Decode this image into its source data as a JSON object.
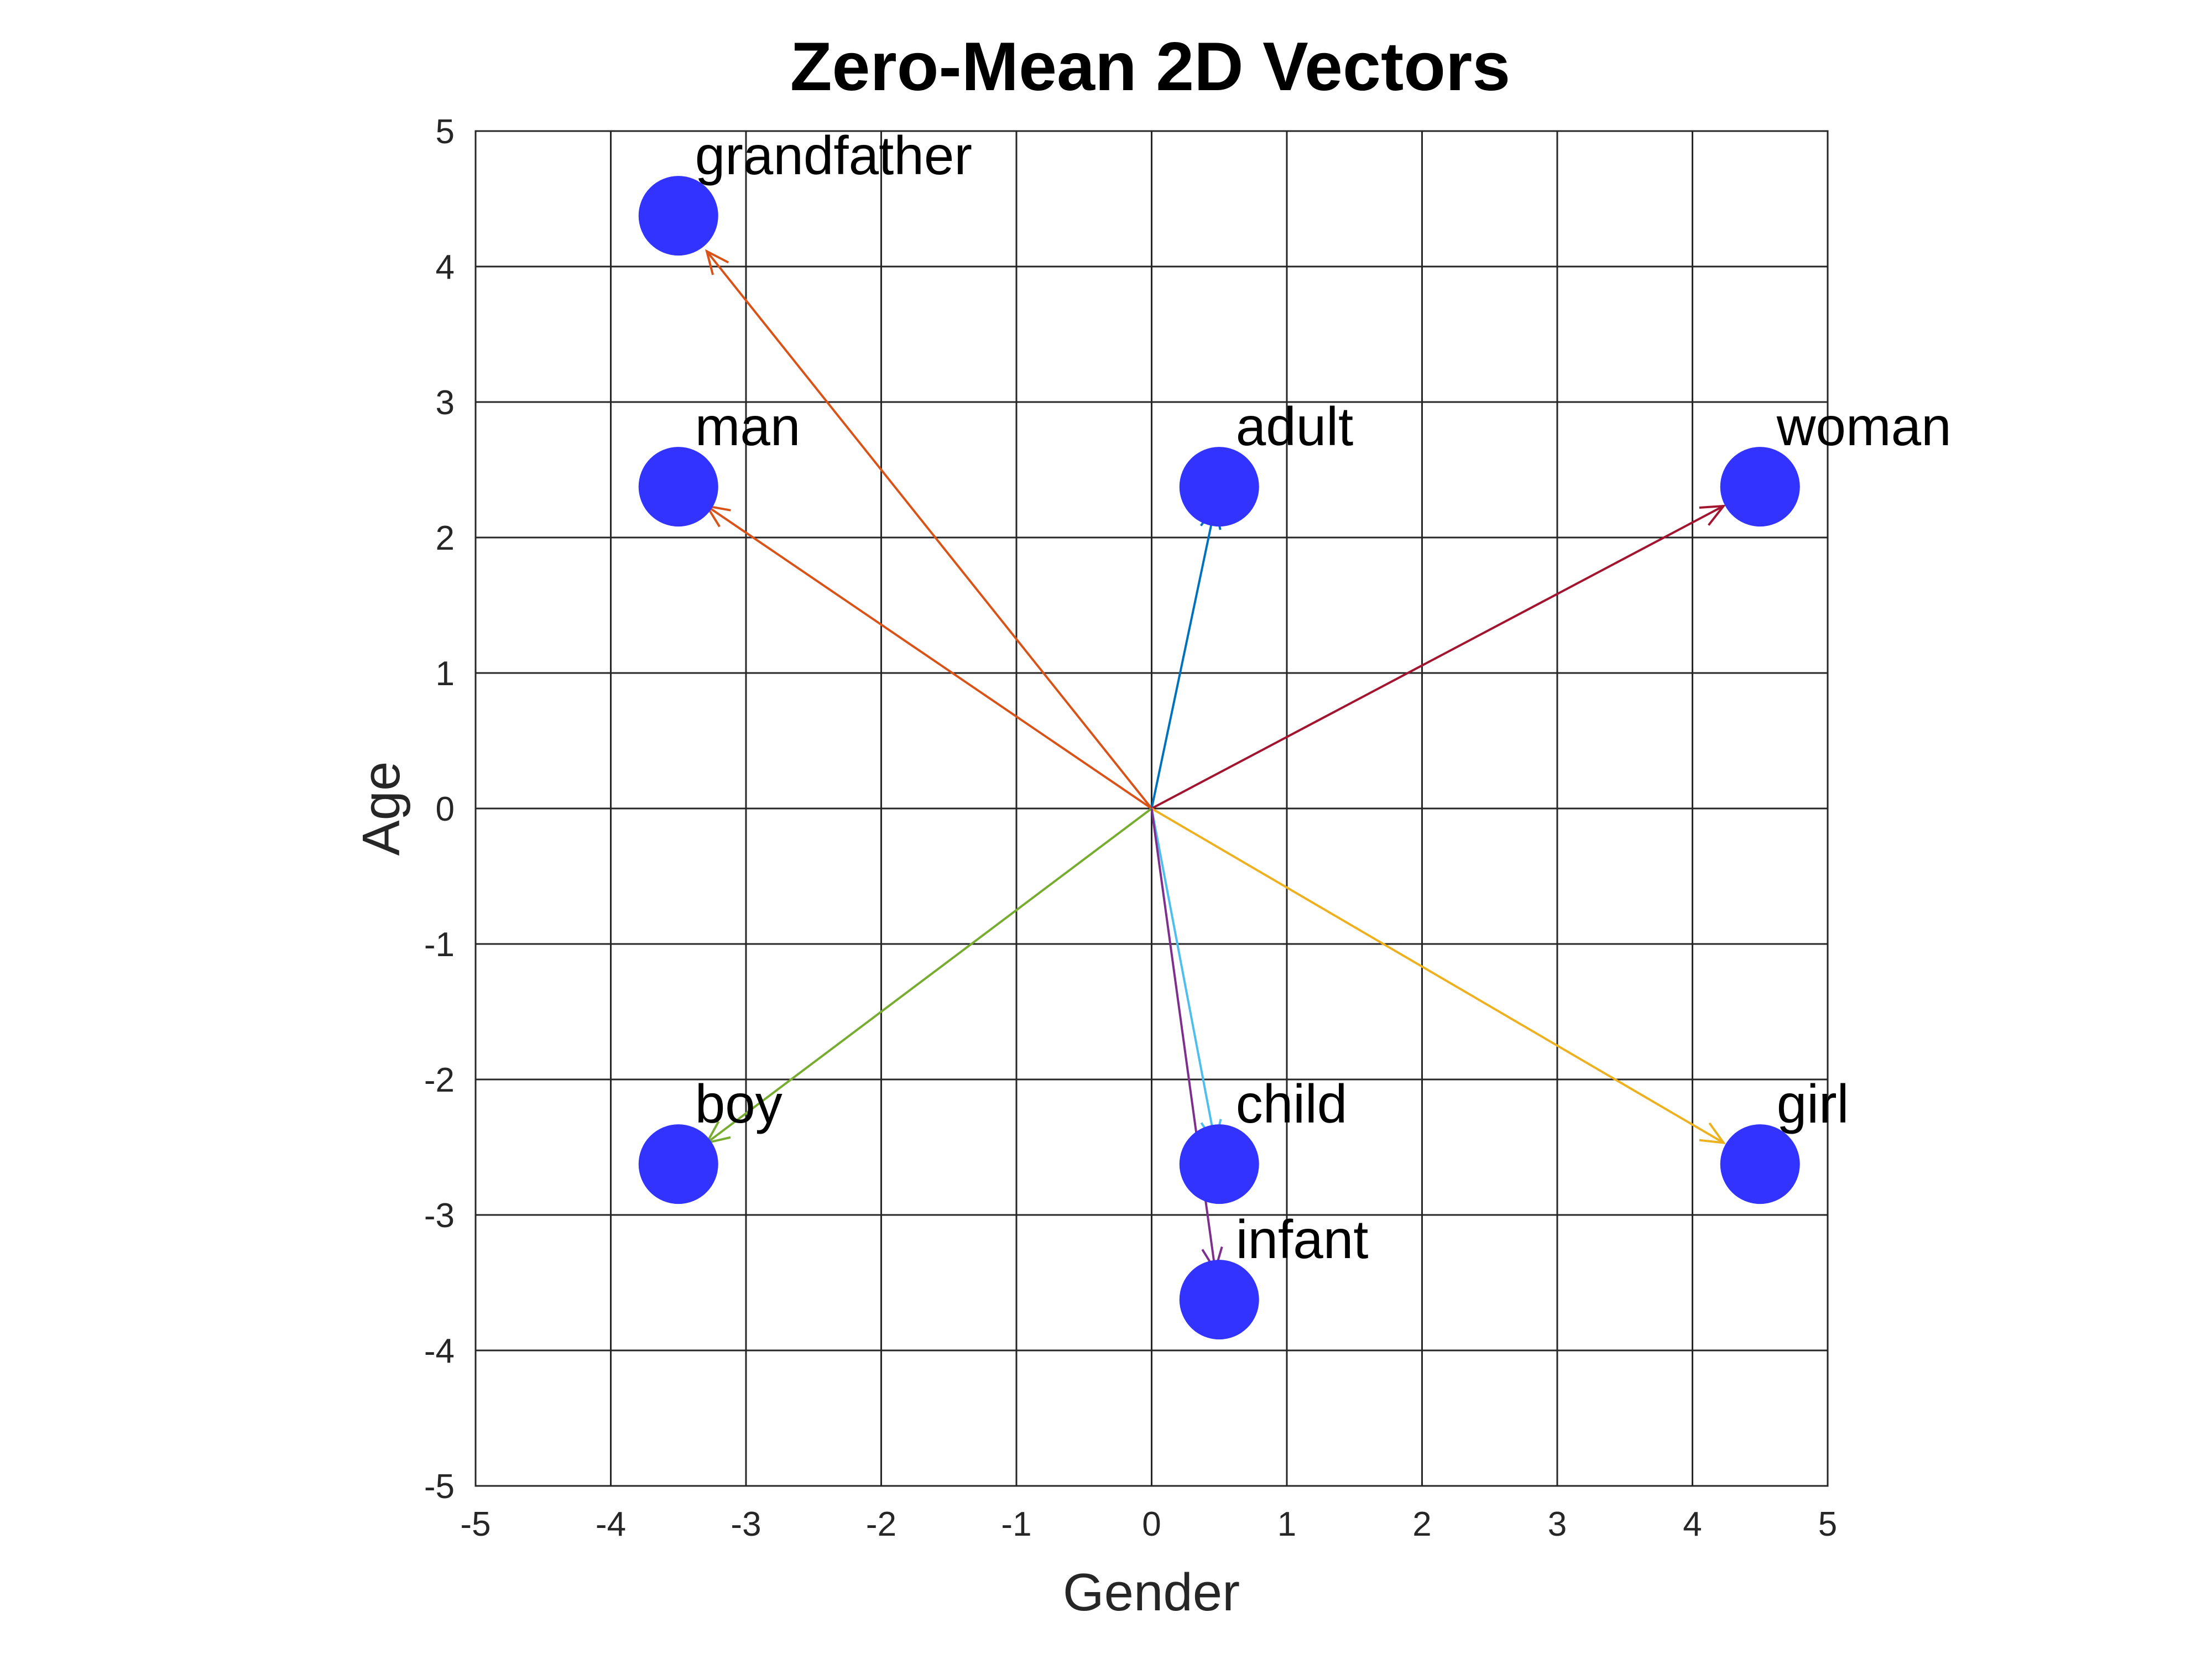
{
  "chart_data": {
    "type": "scatter",
    "title": "Zero-Mean 2D Vectors",
    "xlabel": "Gender",
    "ylabel": "Age",
    "xlim": [
      -5,
      5
    ],
    "ylim": [
      -5,
      5
    ],
    "xticks": [
      "-5",
      "-4",
      "-3",
      "-2",
      "-1",
      "0",
      "1",
      "2",
      "3",
      "4",
      "5"
    ],
    "yticks": [
      "-5",
      "-4",
      "-3",
      "-2",
      "-1",
      "0",
      "1",
      "2",
      "3",
      "4",
      "5"
    ],
    "grid": true,
    "marker_color": "#3333ff",
    "points": [
      {
        "label": "grandfather",
        "x": -3.5,
        "y": 4.375,
        "arrow_color": "#d95319"
      },
      {
        "label": "man",
        "x": -3.5,
        "y": 2.375,
        "arrow_color": "#d95319"
      },
      {
        "label": "adult",
        "x": 0.5,
        "y": 2.375,
        "arrow_color": "#0072bd"
      },
      {
        "label": "woman",
        "x": 4.5,
        "y": 2.375,
        "arrow_color": "#a2142f"
      },
      {
        "label": "boy",
        "x": -3.5,
        "y": -2.625,
        "arrow_color": "#77ac30"
      },
      {
        "label": "child",
        "x": 0.5,
        "y": -2.625,
        "arrow_color": "#4dbeee"
      },
      {
        "label": "girl",
        "x": 4.5,
        "y": -2.625,
        "arrow_color": "#edb120"
      },
      {
        "label": "infant",
        "x": 0.5,
        "y": -3.625,
        "arrow_color": "#7e2f8e"
      }
    ]
  }
}
